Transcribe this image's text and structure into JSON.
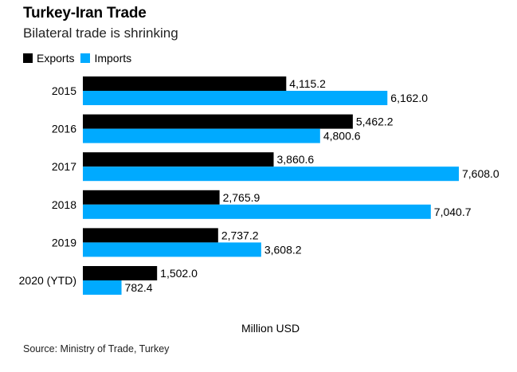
{
  "chart_data": {
    "type": "bar",
    "orientation": "horizontal",
    "title": "Turkey-Iran Trade",
    "subtitle": "Bilateral trade is shrinking",
    "categories": [
      "2015",
      "2016",
      "2017",
      "2018",
      "2019",
      "2020 (YTD)"
    ],
    "series": [
      {
        "name": "Exports",
        "color": "#000000",
        "values": [
          4115.2,
          5462.2,
          3860.6,
          2765.9,
          2737.2,
          1502.0
        ],
        "labels": [
          "4,115.2",
          "5,462.2",
          "3,860.6",
          "2,765.9",
          "2,737.2",
          "1,502.0"
        ]
      },
      {
        "name": "Imports",
        "color": "#00aaff",
        "values": [
          6162.0,
          4800.6,
          7608.0,
          7040.7,
          3608.2,
          782.4
        ],
        "labels": [
          "6,162.0",
          "4,800.6",
          "7,608.0",
          "7,040.7",
          "3,608.2",
          "782.4"
        ]
      }
    ],
    "xlabel": "Million USD",
    "legend_position": "top-left",
    "grid": false,
    "source": "Source: Ministry of Trade, Turkey"
  }
}
